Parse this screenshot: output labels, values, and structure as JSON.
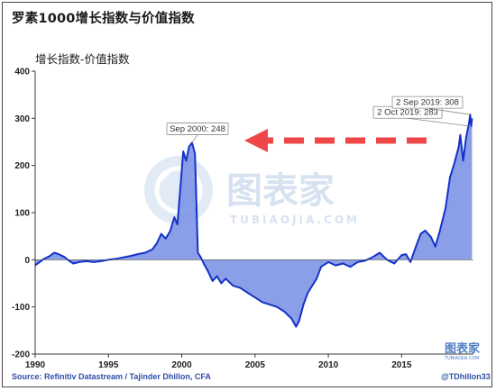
{
  "chart_data": {
    "type": "area",
    "title": "罗素1000增长指数与价值指数",
    "ylabel": "增长指数-价值指数",
    "xlabel": "",
    "source": "Source: Refinitiv Datastream / Tajinder Dhillon, CFA",
    "handle": "@TDhillon33",
    "xlim": [
      1990,
      2019.9
    ],
    "ylim": [
      -200,
      400
    ],
    "x_ticks": [
      1990,
      1995,
      2000,
      2005,
      2010,
      2015
    ],
    "y_ticks": [
      -200,
      -100,
      0,
      100,
      200,
      300,
      400
    ],
    "grid": false,
    "colors": {
      "fill": "#7d95e6",
      "line": "#1432c8",
      "axis": "#3a3a3a",
      "arrow": "#ef4747"
    },
    "annotations": [
      {
        "text": "Sep 2000: 248",
        "x": 2000.7,
        "y": 248
      },
      {
        "text": "2 Oct 2019: 283",
        "x": 2019.75,
        "y": 283
      },
      {
        "text": "2 Sep 2019: 308",
        "x": 2019.67,
        "y": 308
      }
    ],
    "series": [
      {
        "x": [
          1990.0,
          1990.3,
          1990.6,
          1991.0,
          1991.3,
          1991.6,
          1992.0,
          1992.3,
          1992.6,
          1993.0,
          1993.5,
          1994.0,
          1994.5,
          1995.0,
          1995.5,
          1996.0,
          1996.5,
          1997.0,
          1997.5,
          1998.0,
          1998.3,
          1998.6,
          1998.9,
          1999.2,
          1999.5,
          1999.7,
          1999.9,
          2000.1,
          2000.3,
          2000.5,
          2000.7,
          2000.9,
          2001.1,
          2001.3,
          2001.5,
          2001.8,
          2002.1,
          2002.4,
          2002.7,
          2003.0,
          2003.5,
          2004.0,
          2004.5,
          2005.0,
          2005.5,
          2006.0,
          2006.5,
          2007.0,
          2007.5,
          2007.8,
          2008.0,
          2008.3,
          2008.6,
          2008.9,
          2009.2,
          2009.5,
          2010.0,
          2010.5,
          2011.0,
          2011.5,
          2012.0,
          2012.5,
          2013.0,
          2013.5,
          2014.0,
          2014.5,
          2015.0,
          2015.3,
          2015.6,
          2016.0,
          2016.3,
          2016.6,
          2017.0,
          2017.3,
          2017.6,
          2018.0,
          2018.3,
          2018.6,
          2018.9,
          2019.0,
          2019.2,
          2019.4,
          2019.6,
          2019.67,
          2019.75,
          2019.8
        ],
        "y": [
          -12,
          -5,
          2,
          8,
          15,
          12,
          6,
          -2,
          -8,
          -5,
          -3,
          -5,
          -3,
          0,
          2,
          5,
          8,
          12,
          15,
          22,
          35,
          55,
          45,
          60,
          90,
          75,
          150,
          230,
          210,
          240,
          248,
          225,
          15,
          5,
          -8,
          -25,
          -45,
          -35,
          -50,
          -40,
          -55,
          -60,
          -70,
          -80,
          -90,
          -95,
          -100,
          -110,
          -125,
          -142,
          -130,
          -95,
          -70,
          -55,
          -40,
          -15,
          -5,
          -12,
          -8,
          -15,
          -5,
          -2,
          5,
          15,
          0,
          -8,
          10,
          12,
          -5,
          30,
          55,
          62,
          48,
          28,
          60,
          110,
          175,
          205,
          240,
          265,
          210,
          260,
          290,
          308,
          283,
          300
        ]
      }
    ]
  }
}
